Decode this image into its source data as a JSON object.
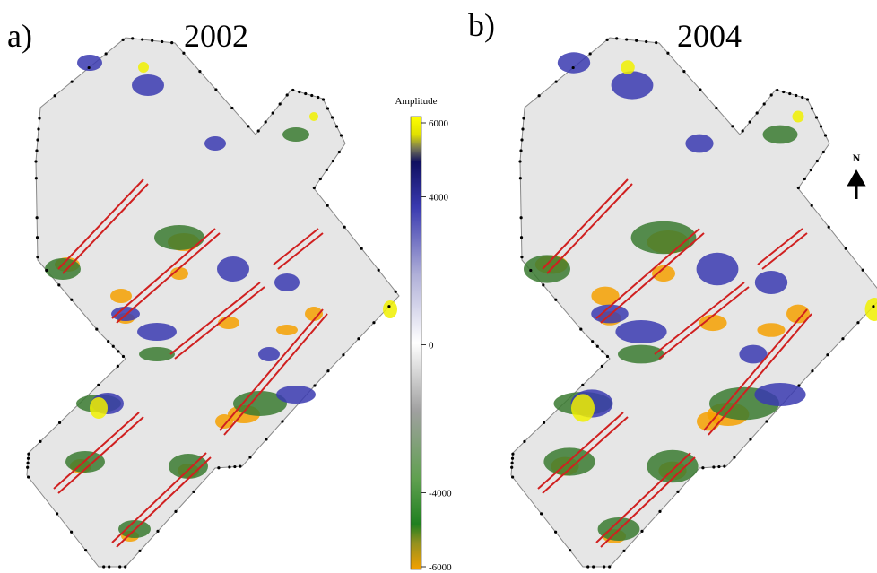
{
  "panels": [
    {
      "label": "a)",
      "year": "2002"
    },
    {
      "label": "b)",
      "year": "2004"
    }
  ],
  "colorbar": {
    "title": "Amplitude",
    "range": [
      -6000,
      6000
    ],
    "ticks": [
      6000,
      4000,
      0,
      -4000,
      -6000
    ]
  },
  "north": "N"
}
